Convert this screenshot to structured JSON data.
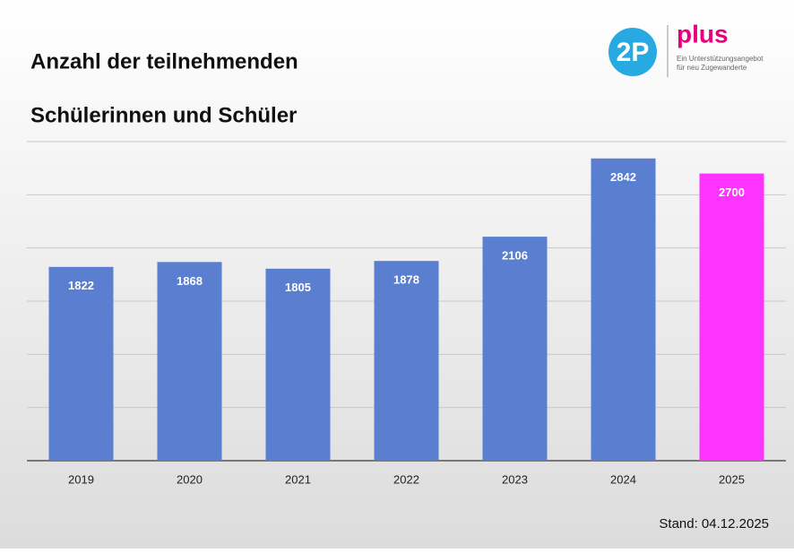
{
  "chart_data": {
    "type": "bar",
    "title": [
      "Anzahl der teilnehmenden",
      "Schülerinnen und Schüler"
    ],
    "logo": {
      "mark": "2P",
      "name": "plus",
      "tagline": [
        "Ein Unterstützungsangebot",
        "für neu Zugewanderte"
      ]
    },
    "annotation": "Stand: 04.12.2025",
    "categories": [
      "2019",
      "2020",
      "2021",
      "2022",
      "2023",
      "2024",
      "2025"
    ],
    "values": [
      1822,
      1868,
      1805,
      1878,
      2106,
      2842,
      2700
    ],
    "colors": [
      "#5b7fd0",
      "#5b7fd0",
      "#5b7fd0",
      "#5b7fd0",
      "#5b7fd0",
      "#5b7fd0",
      "#ff33ff"
    ],
    "ylim": [
      0,
      3000
    ],
    "yticks": [
      0,
      500,
      1000,
      1500,
      2000,
      2500,
      3000
    ],
    "grid": true
  }
}
